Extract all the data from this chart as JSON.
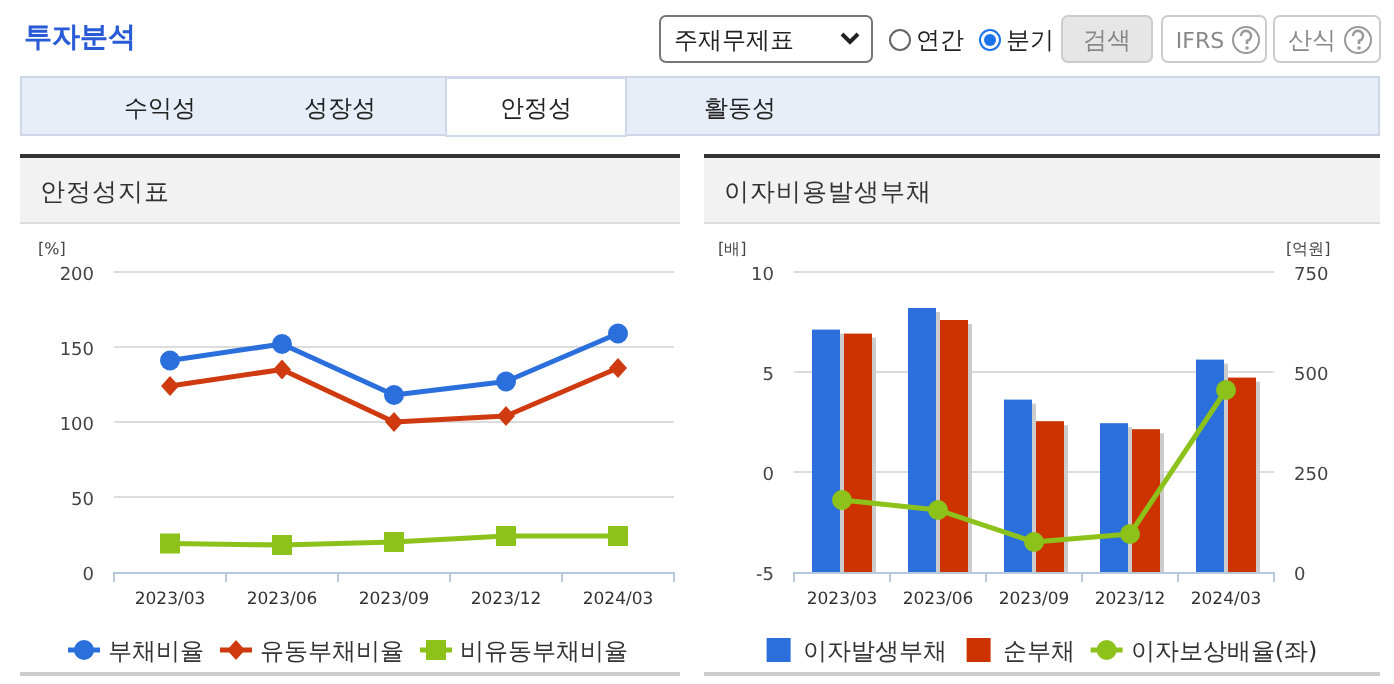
{
  "chart_data": [
    {
      "type": "other",
      "title": "투자분석",
      "annotations": [
        "주재무제표",
        "연간",
        "분기",
        "검색",
        "IFRS",
        "산식",
        "수익성",
        "성장성",
        "안정성",
        "활동성"
      ]
    },
    {
      "type": "line",
      "title": "안정성지표",
      "ylabel": "[%]",
      "categories": [
        "2023/03",
        "2023/06",
        "2023/09",
        "2023/12",
        "2024/03"
      ],
      "ylim": [
        0,
        200
      ],
      "yticks": [
        0,
        50,
        100,
        150,
        200
      ],
      "grid": "y",
      "legend": "bottom",
      "series": [
        {
          "name": "부채비율",
          "color": "#2a6fdb",
          "marker": "circle",
          "values": [
            141,
            152,
            118,
            127,
            159
          ]
        },
        {
          "name": "유동부채비율",
          "color": "#d03a10",
          "marker": "diamond",
          "values": [
            124,
            135,
            100,
            104,
            136
          ]
        },
        {
          "name": "비유동부채비율",
          "color": "#8cc21a",
          "marker": "square",
          "values": [
            19,
            18,
            20,
            24,
            24
          ]
        }
      ]
    },
    {
      "type": "bar",
      "title": "이자비용발생부채",
      "ylabel": "[배]",
      "y2label": "[억원]",
      "categories": [
        "2023/03",
        "2023/06",
        "2023/09",
        "2023/12",
        "2024/03"
      ],
      "ylim": [
        -5,
        10
      ],
      "yticks": [
        -5,
        0,
        5,
        10
      ],
      "y2lim": [
        0,
        750
      ],
      "y2ticks": [
        0,
        250,
        500,
        750
      ],
      "grid": "y",
      "legend": "bottom",
      "series": [
        {
          "name": "이자발생부채",
          "color": "#2a6fdb",
          "axis": "y2",
          "values": [
            606,
            660,
            431,
            372,
            531
          ]
        },
        {
          "name": "순부채",
          "color": "#cc3300",
          "axis": "y2",
          "values": [
            596,
            630,
            377,
            357,
            486
          ]
        },
        {
          "name": "이자보상배율(좌)",
          "type": "line",
          "marker": "circle",
          "color": "#8cc21a",
          "axis": "y",
          "values": [
            -1.4,
            -1.9,
            -3.5,
            -3.1,
            4.1
          ]
        }
      ]
    }
  ]
}
